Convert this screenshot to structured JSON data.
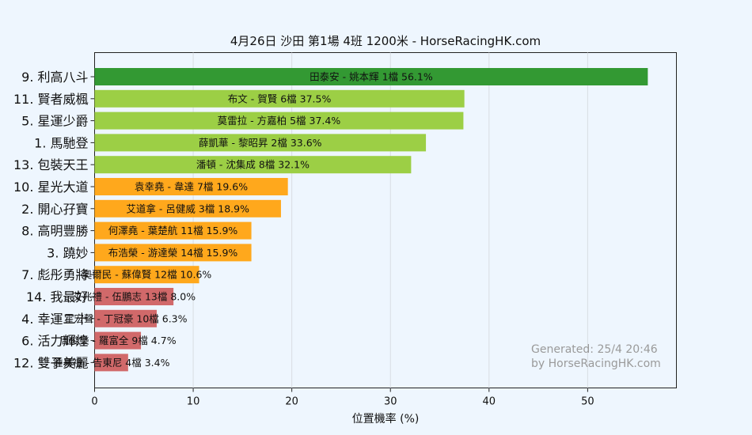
{
  "chart_data": {
    "type": "bar",
    "orientation": "horizontal",
    "title": "4月26日  沙田  第1場  4班  1200米 - HorseRacingHK.com",
    "xlabel": "位置機率 (%)",
    "ylabel": "",
    "xlim": [
      0,
      59
    ],
    "xticks": [
      0,
      10,
      20,
      30,
      40,
      50
    ],
    "grid": true,
    "categories": [
      "9. 利高八斗",
      "11. 賢者威楓",
      "5. 星運少爵",
      "1. 馬馳登",
      "13. 包裝天王",
      "10. 星光大道",
      "2. 開心孖寶",
      "8. 高明豐勝",
      "3. 蹺妙",
      "7. 彪彤勇將",
      "14. 我最好",
      "4. 幸運二十",
      "6. 活力輝煌",
      "12. 雙子美麗"
    ],
    "values": [
      56.1,
      37.5,
      37.4,
      33.6,
      32.1,
      19.6,
      18.9,
      15.9,
      15.9,
      10.6,
      8.0,
      6.3,
      4.7,
      3.4
    ],
    "bar_labels": [
      "田泰安 - 姚本輝 1檔  56.1%",
      "布文 - 賀賢 6檔  37.5%",
      "莫雷拉 - 方嘉柏 5檔  37.4%",
      "薛凱華 - 黎昭昇 2檔  33.6%",
      "潘頓 - 沈集成 8檔  32.1%",
      "袁幸堯 - 韋達 7檔  19.6%",
      "艾道拿 - 呂健威 3檔  18.9%",
      "何澤堯 - 葉楚航 11檔  15.9%",
      "布浩榮 - 游達榮 14檔  15.9%",
      "奧爾民 - 蘇偉賢 12檔  10.6%",
      "艾兆禮 - 伍鵬志 13檔  8.0%",
      "霍宏聲 - 丁冠豪 10檔  6.3%",
      "周俊樂 - 羅富全 9檔  4.7%",
      "鍾易禮 - 告東尼 4檔  3.4%"
    ],
    "bar_colors": [
      "#339933",
      "#9ccf45",
      "#9ccf45",
      "#9ccf45",
      "#9ccf45",
      "#ffa81c",
      "#ffa81c",
      "#ffa81c",
      "#ffa81c",
      "#ffa81c",
      "#d1696a",
      "#d1696a",
      "#d1696a",
      "#d1696a"
    ],
    "background_color": "#eef6fe",
    "watermark": [
      "Generated: 25/4 20:46",
      "by HorseRacingHK.com"
    ]
  }
}
